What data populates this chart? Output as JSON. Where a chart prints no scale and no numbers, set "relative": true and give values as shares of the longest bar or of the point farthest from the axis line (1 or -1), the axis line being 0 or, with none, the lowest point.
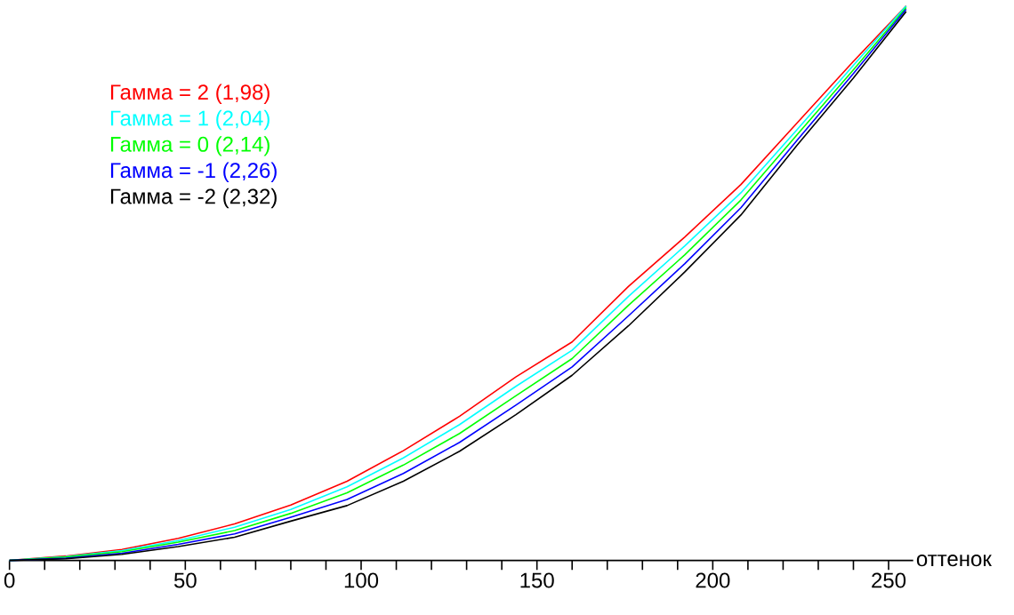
{
  "chart_data": {
    "type": "line",
    "relative": true,
    "xlabel": "оттенок",
    "legend": "top left",
    "x": [
      0,
      16,
      32,
      48,
      64,
      80,
      96,
      112,
      128,
      144,
      160,
      176,
      192,
      208,
      224,
      240,
      255
    ],
    "xlim": [
      0,
      257
    ],
    "xticks": [
      0,
      {
        "value": 10,
        "label": null
      },
      {
        "value": 20,
        "label": null
      },
      {
        "value": 30,
        "label": null
      },
      {
        "value": 40,
        "label": null
      },
      50,
      {
        "value": 60,
        "label": null
      },
      {
        "value": 70,
        "label": null
      },
      {
        "value": 80,
        "label": null
      },
      {
        "value": 90,
        "label": null
      },
      100,
      {
        "value": 110,
        "label": null
      },
      {
        "value": 120,
        "label": null
      },
      {
        "value": 130,
        "label": null
      },
      {
        "value": 140,
        "label": null
      },
      150,
      {
        "value": 160,
        "label": null
      },
      {
        "value": 170,
        "label": null
      },
      {
        "value": 180,
        "label": null
      },
      {
        "value": 190,
        "label": null
      },
      200,
      {
        "value": 210,
        "label": null
      },
      {
        "value": 220,
        "label": null
      },
      {
        "value": 230,
        "label": null
      },
      {
        "value": 240,
        "label": null
      },
      250
    ],
    "series": [
      {
        "name": "Гамма = 2 (1,98)",
        "color": "#ff0000",
        "values": [
          0,
          0.008,
          0.02,
          0.04,
          0.066,
          0.1,
          0.143,
          0.198,
          0.26,
          0.331,
          0.394,
          0.494,
          0.583,
          0.678,
          0.789,
          0.9,
          1
        ]
      },
      {
        "name": "Гамма = 1 (2,04)",
        "color": "#00ffff",
        "values": [
          0,
          0.007,
          0.018,
          0.036,
          0.06,
          0.092,
          0.133,
          0.185,
          0.245,
          0.314,
          0.379,
          0.476,
          0.567,
          0.663,
          0.777,
          0.893,
          1
        ]
      },
      {
        "name": "Гамма = 0 (2,14)",
        "color": "#00ff00",
        "values": [
          0,
          0.006,
          0.016,
          0.033,
          0.054,
          0.085,
          0.122,
          0.172,
          0.229,
          0.297,
          0.364,
          0.46,
          0.551,
          0.65,
          0.768,
          0.885,
          0.997
        ]
      },
      {
        "name": "Гамма = -1 (2,26)",
        "color": "#0000ff",
        "values": [
          0,
          0.004,
          0.013,
          0.029,
          0.048,
          0.078,
          0.11,
          0.157,
          0.213,
          0.28,
          0.349,
          0.441,
          0.535,
          0.636,
          0.758,
          0.878,
          0.994
        ]
      },
      {
        "name": "Гамма = -2 (2,32)",
        "color": "#000000",
        "values": [
          0,
          0.003,
          0.011,
          0.025,
          0.042,
          0.071,
          0.099,
          0.143,
          0.197,
          0.263,
          0.334,
          0.423,
          0.52,
          0.623,
          0.749,
          0.87,
          0.99
        ]
      }
    ]
  }
}
